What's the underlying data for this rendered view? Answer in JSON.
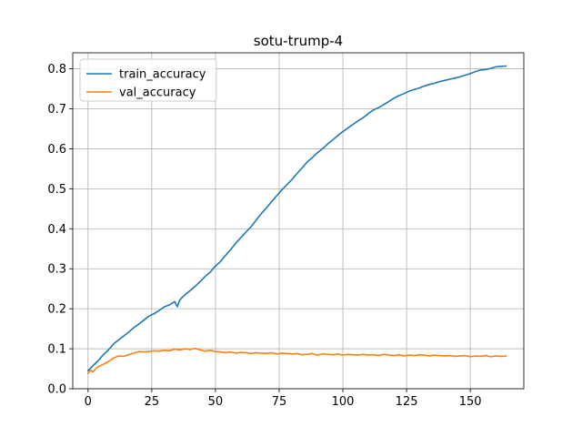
{
  "chart_data": {
    "type": "line",
    "title": "sotu-trump-4",
    "xlabel": "",
    "ylabel": "",
    "xlim": [
      -6,
      171
    ],
    "ylim": [
      0.0,
      0.84
    ],
    "xticks": [
      0,
      25,
      50,
      75,
      100,
      125,
      150
    ],
    "xtick_labels": [
      "0",
      "25",
      "50",
      "75",
      "100",
      "125",
      "150"
    ],
    "yticks": [
      0.0,
      0.1,
      0.2,
      0.3,
      0.4,
      0.5,
      0.6,
      0.7,
      0.8
    ],
    "ytick_labels": [
      "0.0",
      "0.1",
      "0.2",
      "0.3",
      "0.4",
      "0.5",
      "0.6",
      "0.7",
      "0.8"
    ],
    "grid": true,
    "legend_position": "upper-left",
    "series": [
      {
        "name": "train_accuracy",
        "color": "#1f77b4",
        "x": [
          0,
          2,
          4,
          6,
          8,
          10,
          12,
          14,
          16,
          18,
          20,
          22,
          24,
          26,
          28,
          30,
          32,
          34,
          35,
          36,
          38,
          40,
          42,
          44,
          46,
          48,
          50,
          52,
          54,
          56,
          58,
          60,
          62,
          64,
          66,
          68,
          70,
          72,
          74,
          76,
          78,
          80,
          82,
          84,
          86,
          88,
          90,
          92,
          94,
          96,
          98,
          100,
          102,
          104,
          106,
          108,
          110,
          112,
          114,
          116,
          118,
          120,
          122,
          124,
          126,
          128,
          130,
          132,
          134,
          136,
          138,
          140,
          142,
          144,
          146,
          148,
          150,
          152,
          154,
          156,
          158,
          160,
          162,
          164
        ],
        "values": [
          0.045,
          0.058,
          0.07,
          0.085,
          0.097,
          0.112,
          0.122,
          0.132,
          0.142,
          0.153,
          0.162,
          0.172,
          0.182,
          0.188,
          0.196,
          0.205,
          0.21,
          0.218,
          0.205,
          0.222,
          0.235,
          0.245,
          0.256,
          0.268,
          0.281,
          0.292,
          0.307,
          0.318,
          0.334,
          0.348,
          0.364,
          0.378,
          0.392,
          0.405,
          0.422,
          0.438,
          0.452,
          0.468,
          0.482,
          0.497,
          0.51,
          0.523,
          0.538,
          0.552,
          0.567,
          0.578,
          0.59,
          0.6,
          0.612,
          0.622,
          0.633,
          0.643,
          0.652,
          0.661,
          0.67,
          0.678,
          0.688,
          0.697,
          0.703,
          0.71,
          0.718,
          0.726,
          0.733,
          0.738,
          0.744,
          0.748,
          0.752,
          0.757,
          0.761,
          0.764,
          0.768,
          0.771,
          0.774,
          0.777,
          0.78,
          0.784,
          0.788,
          0.793,
          0.797,
          0.798,
          0.801,
          0.805,
          0.806,
          0.807
        ]
      },
      {
        "name": "val_accuracy",
        "color": "#ff7f0e",
        "x": [
          0,
          1,
          2,
          3,
          4,
          6,
          8,
          10,
          12,
          14,
          16,
          18,
          20,
          22,
          24,
          26,
          28,
          30,
          32,
          34,
          36,
          38,
          40,
          42,
          44,
          46,
          48,
          50,
          52,
          54,
          56,
          58,
          60,
          62,
          64,
          66,
          68,
          70,
          72,
          74,
          76,
          78,
          80,
          82,
          84,
          86,
          88,
          90,
          92,
          94,
          96,
          98,
          100,
          102,
          104,
          106,
          108,
          110,
          112,
          114,
          116,
          118,
          120,
          122,
          124,
          126,
          128,
          130,
          132,
          134,
          136,
          138,
          140,
          142,
          144,
          146,
          148,
          150,
          152,
          154,
          156,
          158,
          160,
          162,
          164
        ],
        "values": [
          0.038,
          0.046,
          0.042,
          0.05,
          0.055,
          0.061,
          0.068,
          0.077,
          0.082,
          0.081,
          0.085,
          0.089,
          0.093,
          0.092,
          0.093,
          0.095,
          0.094,
          0.096,
          0.095,
          0.099,
          0.097,
          0.1,
          0.098,
          0.101,
          0.097,
          0.094,
          0.096,
          0.093,
          0.092,
          0.09,
          0.092,
          0.089,
          0.091,
          0.09,
          0.088,
          0.09,
          0.089,
          0.088,
          0.09,
          0.087,
          0.089,
          0.088,
          0.087,
          0.088,
          0.085,
          0.086,
          0.088,
          0.084,
          0.087,
          0.086,
          0.085,
          0.087,
          0.084,
          0.086,
          0.085,
          0.084,
          0.086,
          0.084,
          0.085,
          0.083,
          0.086,
          0.084,
          0.083,
          0.085,
          0.082,
          0.084,
          0.083,
          0.085,
          0.084,
          0.082,
          0.084,
          0.083,
          0.082,
          0.083,
          0.081,
          0.082,
          0.083,
          0.08,
          0.082,
          0.081,
          0.083,
          0.08,
          0.082,
          0.081,
          0.082
        ]
      }
    ]
  }
}
